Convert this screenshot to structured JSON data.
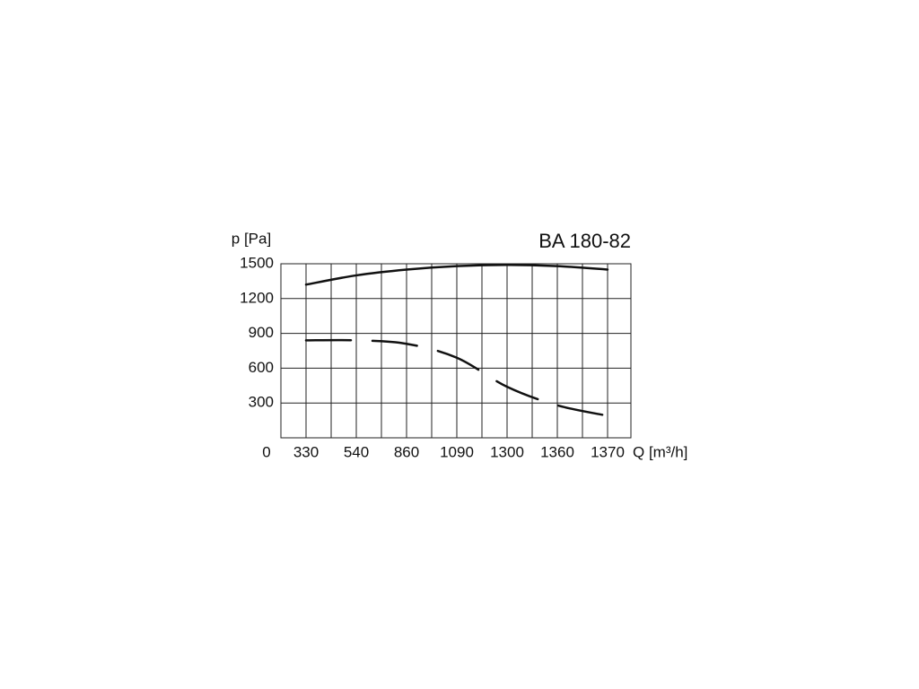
{
  "chart_data": {
    "type": "line",
    "title": "BA 180-82",
    "y_label": "p [Pa]",
    "x_label": "Q [m³/h]",
    "origin_label": "0",
    "categories": [
      "330",
      "540",
      "860",
      "1090",
      "1300",
      "1360",
      "1370"
    ],
    "series": [
      {
        "color": "#111111",
        "style": "solid",
        "values": [
          1320,
          1400,
          1450,
          1480,
          1490,
          1480,
          1450
        ]
      },
      {
        "color": "#111111",
        "style": "dashed",
        "values": [
          840,
          840,
          810,
          690,
          440,
          280,
          190
        ]
      }
    ],
    "ylim": [
      0,
      1500
    ],
    "yticks": [
      300,
      600,
      900,
      1200,
      1500
    ],
    "grid": true
  }
}
